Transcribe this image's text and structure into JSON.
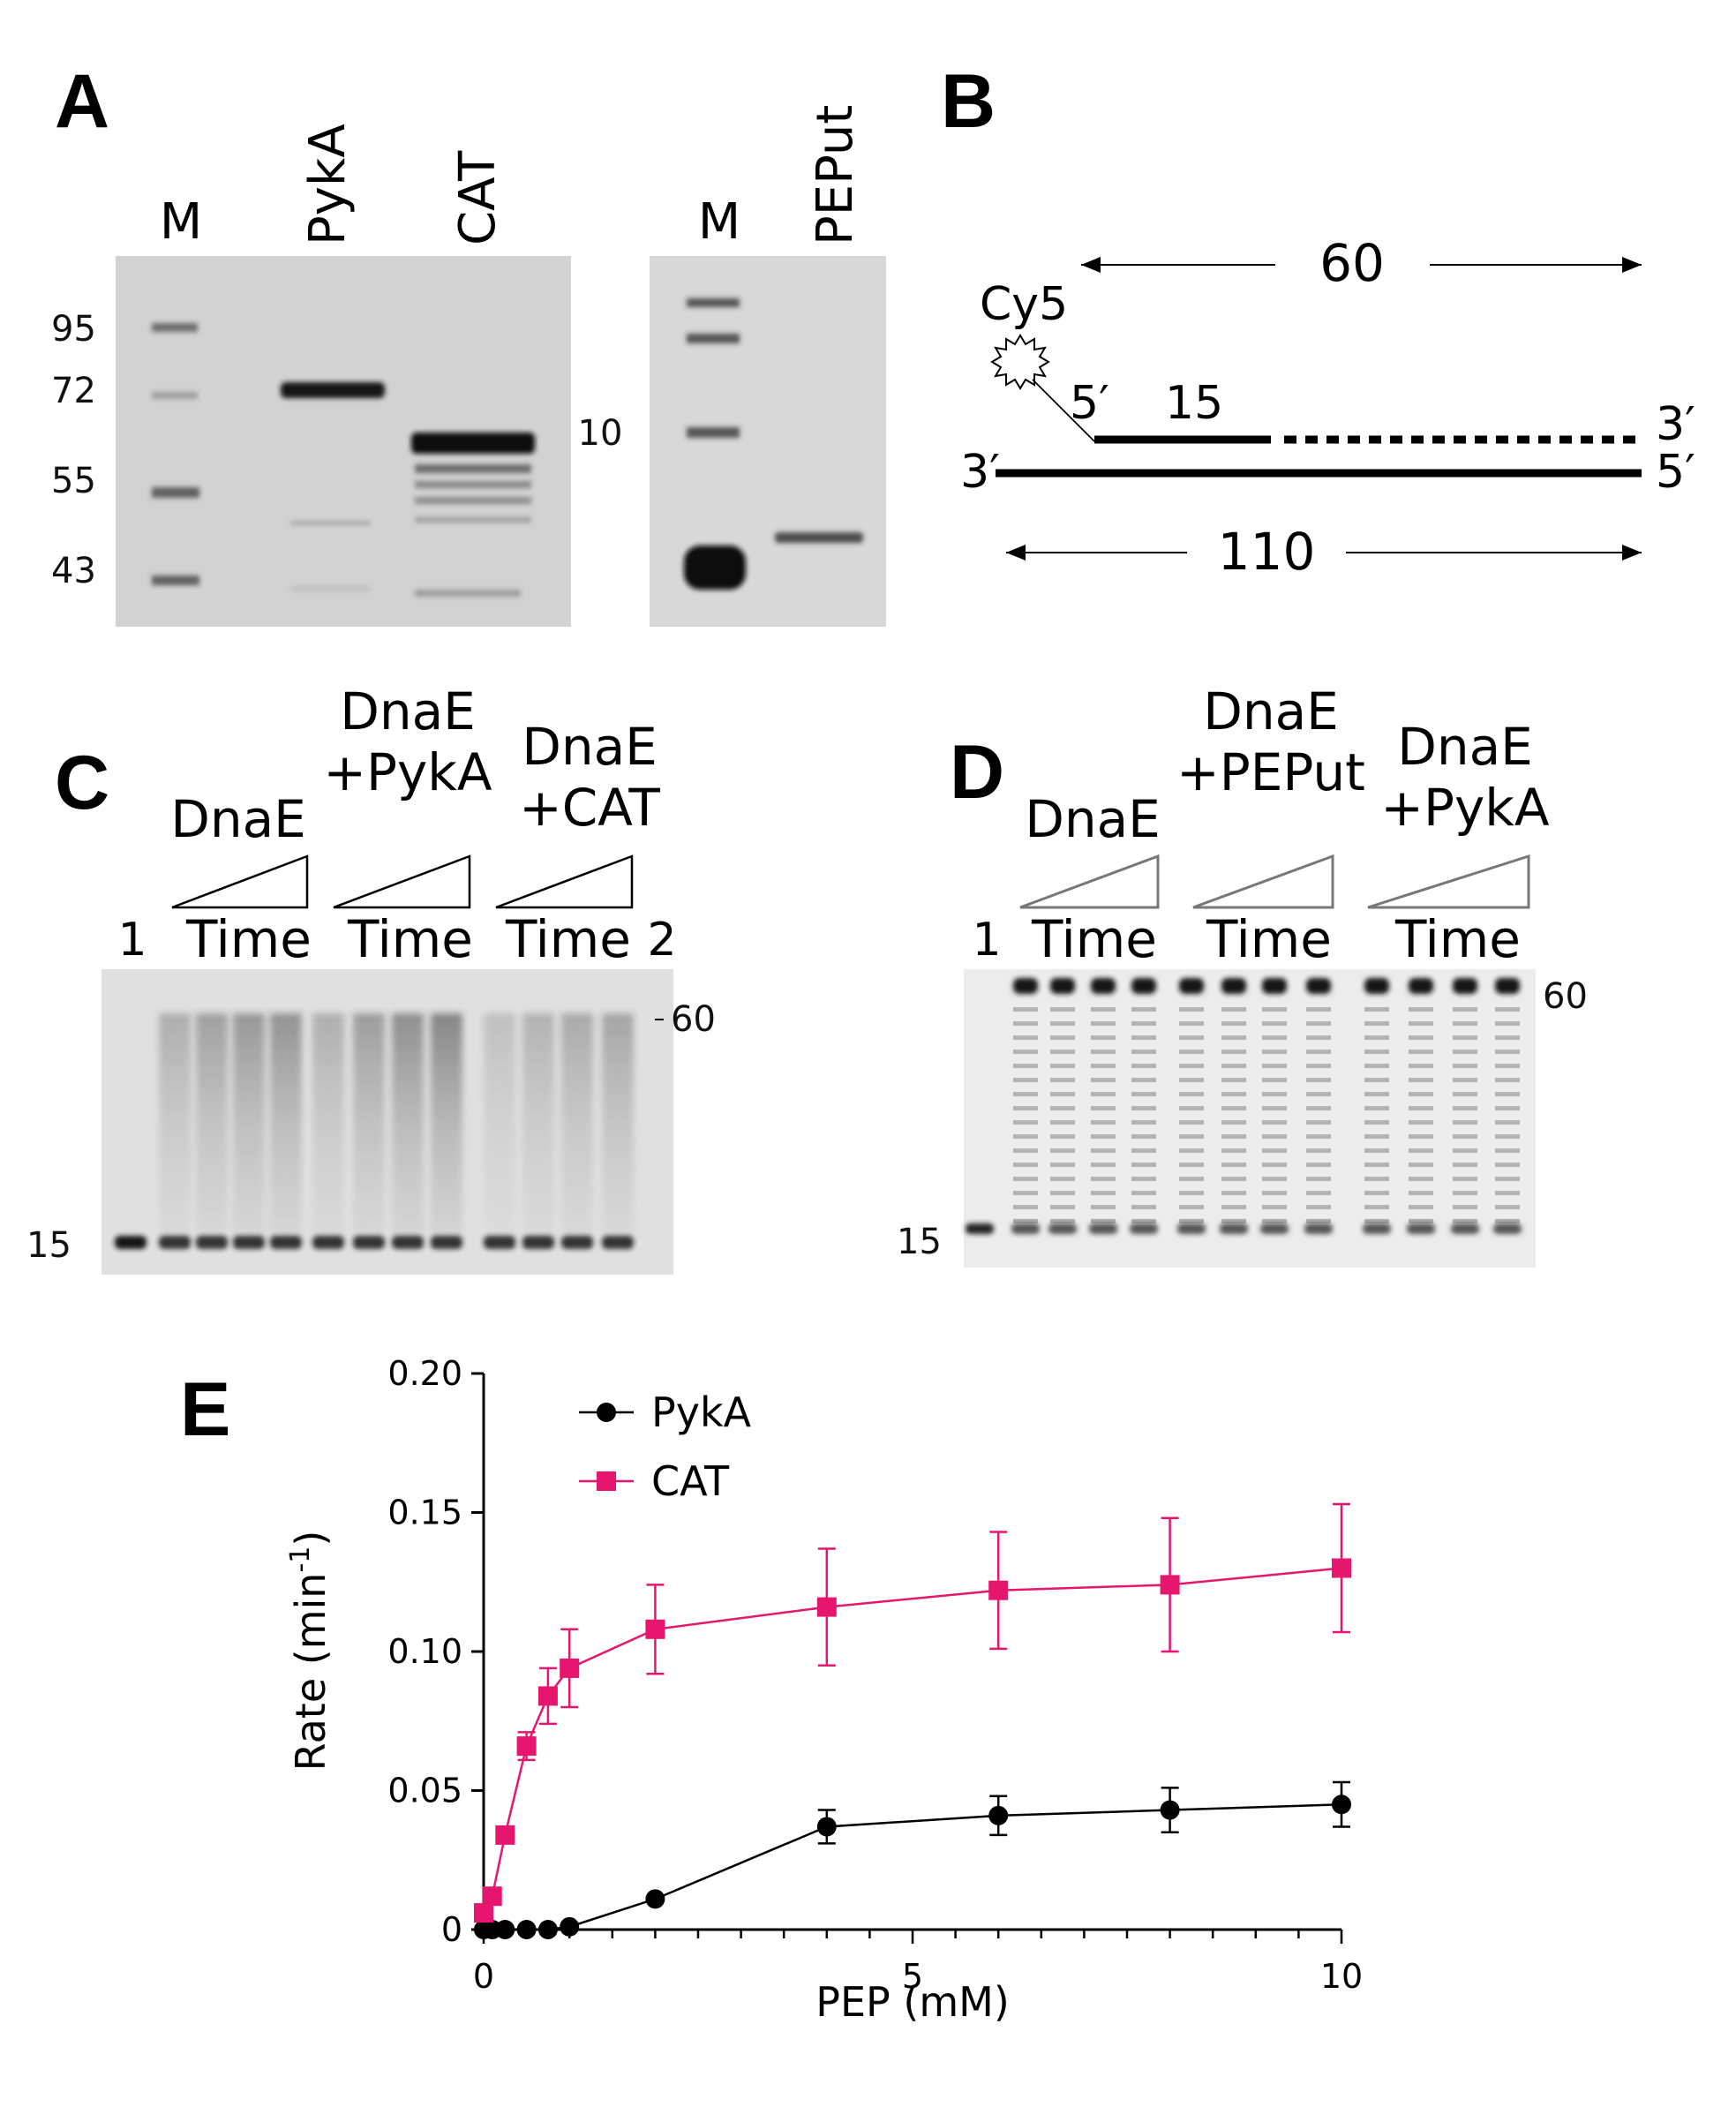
{
  "panels": {
    "A": {
      "label": "A",
      "gel1": {
        "lanes": [
          "M",
          "PykA",
          "CAT"
        ],
        "markers": [
          "95",
          "72",
          "55",
          "43"
        ]
      },
      "gel2": {
        "lanes": [
          "M",
          "PEPut"
        ],
        "marker": "10"
      }
    },
    "B": {
      "label": "B",
      "len_top": "60",
      "len_bottom": "110",
      "primer_len": "15",
      "dye": "Cy5",
      "p_5_top": "5′",
      "p_3_top": "3′",
      "p_3_bot": "3′",
      "p_5_bot": "5′"
    },
    "C": {
      "label": "C",
      "groups": [
        {
          "line1": "",
          "line2": "DnaE"
        },
        {
          "line1": "DnaE",
          "line2": "+PykA"
        },
        {
          "line1": "DnaE",
          "line2": "+CAT"
        }
      ],
      "time": "Time",
      "lane1": "1",
      "lane2": "2",
      "size_top": "60",
      "size_bottom": "15"
    },
    "D": {
      "label": "D",
      "groups": [
        {
          "line1": "",
          "line2": "DnaE"
        },
        {
          "line1": "DnaE",
          "line2": "+PEPut"
        },
        {
          "line1": "DnaE",
          "line2": "+PykA"
        }
      ],
      "time": "Time",
      "lane1": "1",
      "size_top": "60",
      "size_bottom": "15"
    },
    "E": {
      "label": "E"
    }
  },
  "chart_data": {
    "type": "line",
    "xlabel": "PEP (mM)",
    "ylabel_main": "Rate (min",
    "ylabel_sup": "-1",
    "ylabel_end": ")",
    "xlim": [
      0,
      10
    ],
    "ylim": [
      0,
      0.2
    ],
    "xticks": [
      "0",
      "5",
      "10"
    ],
    "yticks": [
      "0",
      "0.05",
      "0.10",
      "0.15",
      "0.20"
    ],
    "legend_position": "top-left",
    "series": [
      {
        "name": "PykA",
        "color": "#000000",
        "marker": "circle",
        "x": [
          0,
          0.1,
          0.25,
          0.5,
          0.75,
          1,
          2,
          4,
          6,
          8,
          10
        ],
        "y": [
          0,
          0,
          0,
          0,
          0,
          0.001,
          0.011,
          0.037,
          0.041,
          0.043,
          0.045
        ],
        "err": [
          0,
          0,
          0,
          0,
          0,
          0,
          0,
          0.006,
          0.007,
          0.008,
          0.008
        ]
      },
      {
        "name": "CAT",
        "color": "#e6166e",
        "marker": "square",
        "x": [
          0,
          0.1,
          0.25,
          0.5,
          0.75,
          1,
          2,
          4,
          6,
          8,
          10
        ],
        "y": [
          0.006,
          0.012,
          0.034,
          0.066,
          0.084,
          0.094,
          0.108,
          0.116,
          0.122,
          0.124,
          0.13
        ],
        "err": [
          0,
          0,
          0,
          0.005,
          0.01,
          0.014,
          0.016,
          0.021,
          0.021,
          0.024,
          0.023
        ]
      }
    ]
  }
}
